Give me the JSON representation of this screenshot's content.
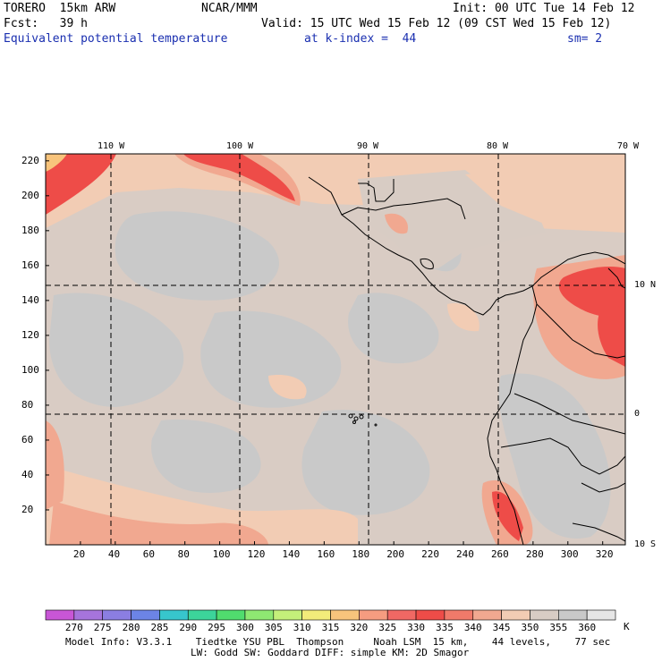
{
  "header": {
    "model": "TORERO  15km ARW",
    "center": "NCAR/MMM",
    "init": "Init: 00 UTC Tue 14 Feb 12",
    "fcst": "Fcst:   39 h",
    "valid": "Valid: 15 UTC Wed 15 Feb 12 (09 CST Wed 15 Feb 12)",
    "field": "Equivalent potential temperature",
    "level": "at k-index =  44",
    "smooth": "sm= 2"
  },
  "map": {
    "lon_labels": [
      "110 W",
      "100 W",
      "90 W",
      "80 W",
      "70 W"
    ],
    "lat_labels": [
      "10 N",
      "0",
      "10 S"
    ],
    "x_ticks": [
      "20",
      "40",
      "60",
      "80",
      "100",
      "120",
      "140",
      "160",
      "180",
      "200",
      "220",
      "240",
      "260",
      "280",
      "300",
      "320"
    ],
    "y_ticks": [
      "220",
      "200",
      "180",
      "160",
      "140",
      "120",
      "100",
      "80",
      "60",
      "40",
      "20"
    ]
  },
  "palette": {
    "levels": [
      "270",
      "275",
      "280",
      "285",
      "290",
      "295",
      "300",
      "305",
      "310",
      "315",
      "320",
      "325",
      "330",
      "335",
      "340",
      "345",
      "350",
      "355",
      "360"
    ],
    "unit": "K",
    "colors": [
      "#c856d6",
      "#a674dc",
      "#8b7ee2",
      "#6c84e6",
      "#37c6cc",
      "#3cd49a",
      "#50dc6e",
      "#8ee872",
      "#c4f07a",
      "#f2ec7a",
      "#f8c47c",
      "#f59c80",
      "#f06864",
      "#ee4c48",
      "#f07a6a",
      "#f1a890",
      "#f2ccb4",
      "#d8ccc4",
      "#c9c9c9",
      "#e6e6e6"
    ]
  },
  "footer": {
    "line1": "Model Info: V3.3.1    Tiedtke YSU PBL  Thompson     Noah LSM  15 km,    44 levels,    77 sec",
    "line2": "LW: Godd SW: Goddard DIFF: simple KM: 2D Smagor"
  }
}
